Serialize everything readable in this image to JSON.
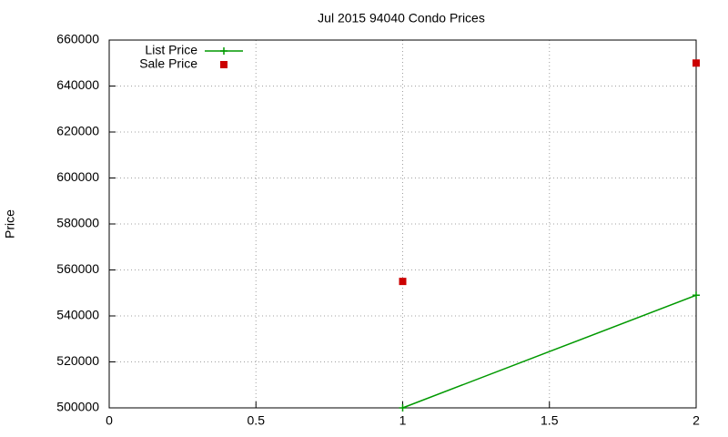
{
  "chart_data": {
    "type": "line",
    "title": "Jul 2015 94040 Condo Prices",
    "y_label": "Price",
    "xlim": [
      0,
      2
    ],
    "xticks": [
      0,
      0.5,
      1,
      1.5,
      2
    ],
    "ylim": [
      500000,
      660000
    ],
    "yticks": [
      500000,
      520000,
      540000,
      560000,
      580000,
      600000,
      620000,
      640000,
      660000
    ],
    "grid": true,
    "legend": "top-left",
    "series": [
      {
        "name": "List Price",
        "color": "#009900",
        "line": true,
        "marker": "plus",
        "x": [
          1,
          2
        ],
        "values": [
          500000,
          549000
        ]
      },
      {
        "name": "Sale Price",
        "color": "#cc0000",
        "line": false,
        "marker": "square",
        "x": [
          1,
          2
        ],
        "values": [
          555000,
          650000
        ]
      }
    ]
  }
}
